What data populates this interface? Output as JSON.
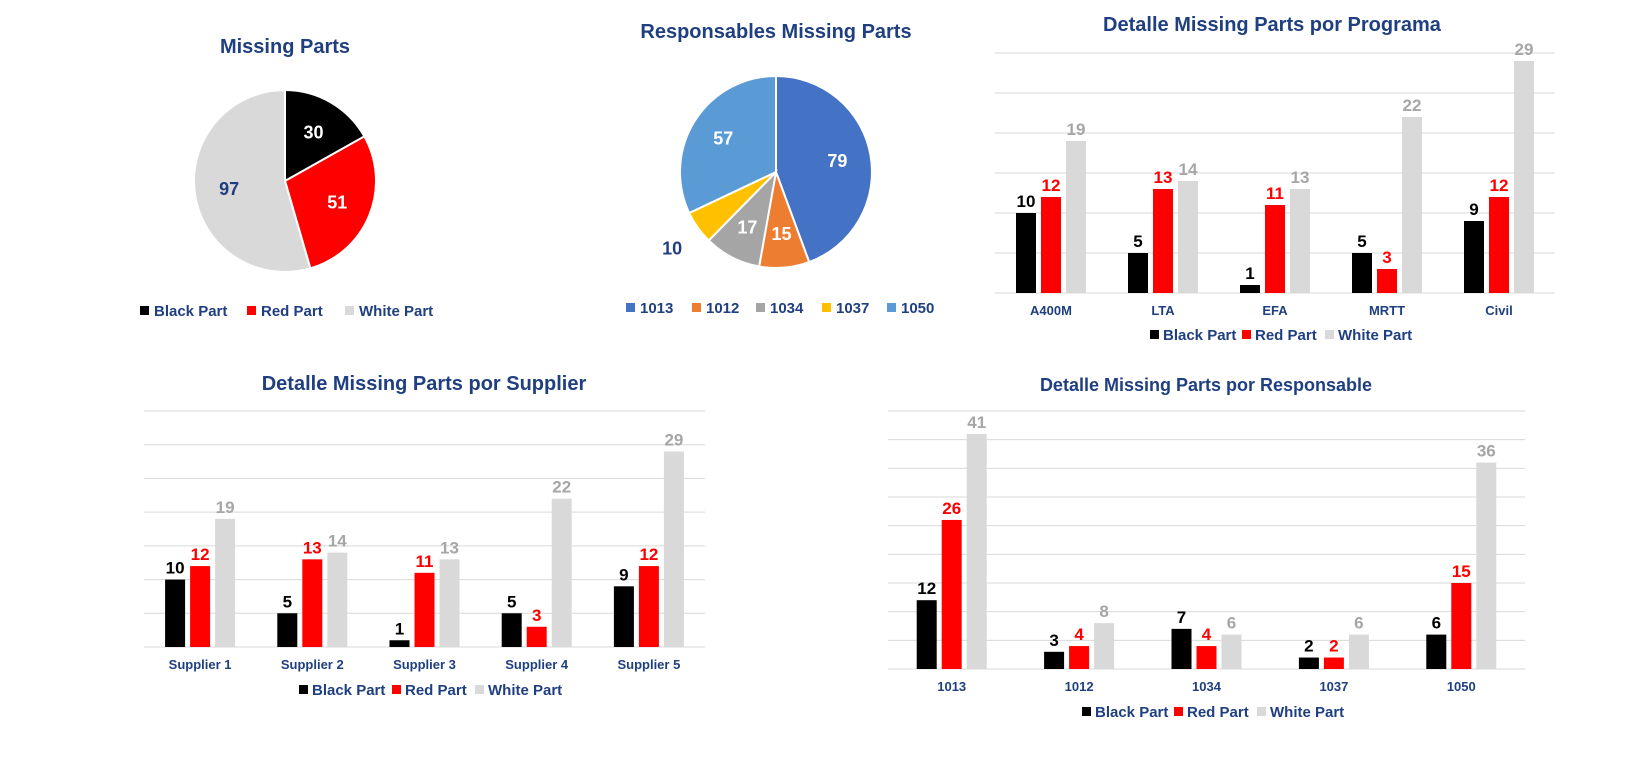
{
  "colors": {
    "black": "#000000",
    "red": "#ff0000",
    "white": "#d9d9d9",
    "title": "#1f3f80",
    "grid": "#d9d9d9"
  },
  "chart_data": [
    {
      "id": "missing-parts",
      "type": "pie",
      "title": "Missing Parts",
      "labels": [
        "Black Part",
        "Red Part",
        "White Part"
      ],
      "values": [
        30,
        51,
        97
      ],
      "colors": [
        "#000000",
        "#ff0000",
        "#d9d9d9"
      ],
      "label_colors": [
        "#ffffff",
        "#ffffff",
        "#1f3f80"
      ],
      "legend": "bottom"
    },
    {
      "id": "responsables-missing-parts",
      "type": "pie",
      "title": "Responsables Missing Parts",
      "labels": [
        "1013",
        "1012",
        "1034",
        "1037",
        "1050"
      ],
      "values": [
        79,
        15,
        17,
        10,
        57
      ],
      "colors": [
        "#4472c4",
        "#ed7d31",
        "#a5a5a5",
        "#ffc000",
        "#5b9bd5"
      ],
      "label_colors": [
        "#ffffff",
        "#ffffff",
        "#ffffff",
        "#1f3f80",
        "#ffffff"
      ],
      "legend": "bottom"
    },
    {
      "id": "detalle-programa",
      "type": "bar",
      "title": "Detalle Missing Parts por Programa",
      "categories": [
        "A400M",
        "LTA",
        "EFA",
        "MRTT",
        "Civil"
      ],
      "series": [
        {
          "name": "Black Part",
          "values": [
            10,
            5,
            1,
            5,
            9
          ],
          "color": "#000000"
        },
        {
          "name": "Red Part",
          "values": [
            12,
            13,
            11,
            3,
            12
          ],
          "color": "#ff0000"
        },
        {
          "name": "White Part",
          "values": [
            19,
            14,
            13,
            22,
            29
          ],
          "color": "#d9d9d9"
        }
      ],
      "ylim": [
        0,
        30
      ],
      "grid": true,
      "legend": "bottom"
    },
    {
      "id": "detalle-supplier",
      "type": "bar",
      "title": "Detalle Missing Parts por Supplier",
      "categories": [
        "Supplier 1",
        "Supplier 2",
        "Supplier 3",
        "Supplier 4",
        "Supplier 5"
      ],
      "series": [
        {
          "name": "Black Part",
          "values": [
            10,
            5,
            1,
            5,
            9
          ],
          "color": "#000000"
        },
        {
          "name": "Red Part",
          "values": [
            12,
            13,
            11,
            3,
            12
          ],
          "color": "#ff0000"
        },
        {
          "name": "White Part",
          "values": [
            19,
            14,
            13,
            22,
            29
          ],
          "color": "#d9d9d9"
        }
      ],
      "ylim": [
        0,
        35
      ],
      "grid": true,
      "legend": "bottom"
    },
    {
      "id": "detalle-responsable",
      "type": "bar",
      "title": "Detalle Missing Parts por Responsable",
      "categories": [
        "1013",
        "1012",
        "1034",
        "1037",
        "1050"
      ],
      "series": [
        {
          "name": "Black Part",
          "values": [
            12,
            3,
            7,
            2,
            6
          ],
          "color": "#000000"
        },
        {
          "name": "Red Part",
          "values": [
            26,
            4,
            4,
            2,
            15
          ],
          "color": "#ff0000"
        },
        {
          "name": "White Part",
          "values": [
            41,
            8,
            6,
            6,
            36
          ],
          "color": "#d9d9d9"
        }
      ],
      "ylim": [
        0,
        45
      ],
      "grid": true,
      "legend": "bottom"
    }
  ]
}
